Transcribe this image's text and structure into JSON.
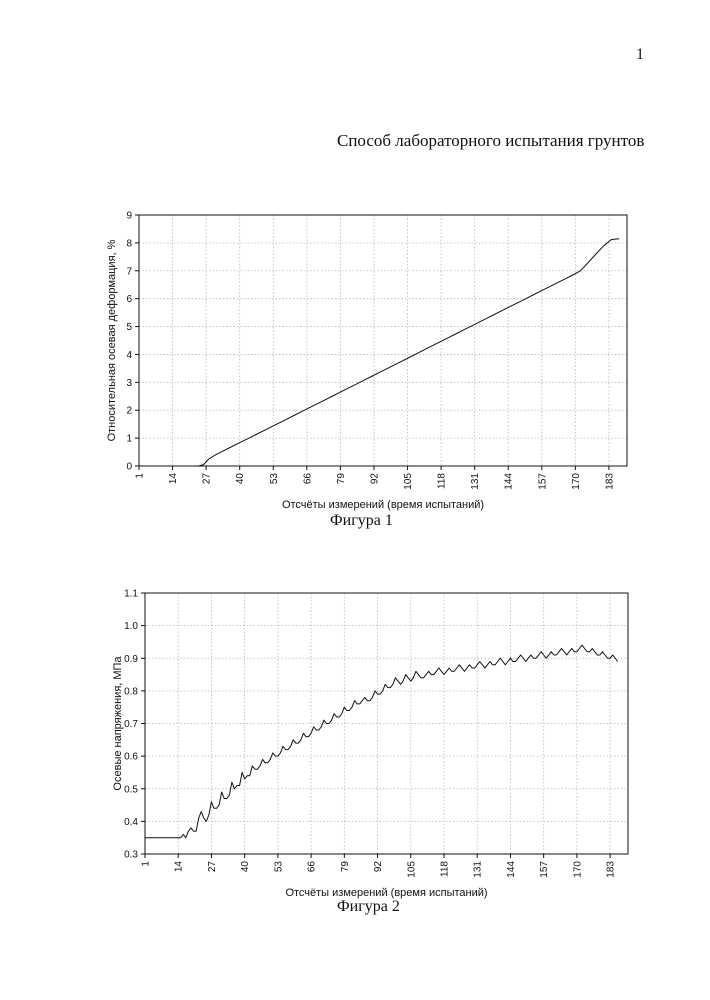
{
  "page_number": "1",
  "document_title": "Способ лабораторного испытания грунтов",
  "captions": [
    "Фигура 1",
    "Фигура 2"
  ],
  "chart_data": [
    {
      "type": "line",
      "caption": "Фигура 1",
      "xlabel": "Отсчёты измерений (время испытаний)",
      "ylabel": "Относительная осевая деформация, %",
      "x_tick_labels": [
        "1",
        "14",
        "27",
        "40",
        "53",
        "66",
        "79",
        "92",
        "105",
        "118",
        "131",
        "144",
        "157",
        "170",
        "183"
      ],
      "y_tick_labels": [
        "0",
        "1",
        "2",
        "3",
        "4",
        "5",
        "6",
        "7",
        "8",
        "9"
      ],
      "xlim": [
        1,
        190
      ],
      "ylim": [
        0,
        9
      ],
      "grid": true,
      "series": [
        {
          "x": [
            1,
            24,
            26,
            28,
            31,
            34,
            37,
            40,
            43,
            46,
            49,
            52,
            55,
            58,
            61,
            64,
            67,
            70,
            73,
            76,
            79,
            82,
            85,
            88,
            91,
            94,
            97,
            100,
            103,
            106,
            109,
            112,
            115,
            118,
            121,
            124,
            127,
            130,
            133,
            136,
            139,
            142,
            145,
            148,
            151,
            154,
            157,
            160,
            163,
            166,
            169,
            172,
            175,
            178,
            181,
            184,
            187
          ],
          "y": [
            0.0,
            0.0,
            0.05,
            0.25,
            0.42,
            0.56,
            0.7,
            0.84,
            0.97,
            1.11,
            1.25,
            1.39,
            1.53,
            1.67,
            1.81,
            1.95,
            2.09,
            2.23,
            2.37,
            2.51,
            2.65,
            2.79,
            2.93,
            3.07,
            3.21,
            3.35,
            3.49,
            3.63,
            3.77,
            3.91,
            4.05,
            4.19,
            4.33,
            4.47,
            4.61,
            4.75,
            4.89,
            5.03,
            5.17,
            5.31,
            5.45,
            5.59,
            5.73,
            5.87,
            6.01,
            6.15,
            6.29,
            6.43,
            6.57,
            6.71,
            6.85,
            7.0,
            7.3,
            7.6,
            7.9,
            8.12,
            8.15
          ]
        }
      ]
    },
    {
      "type": "line",
      "caption": "Фигура 2",
      "xlabel": "Отсчёты измерений (время испытаний)",
      "ylabel": "Осевые напряжения, МПа",
      "x_tick_labels": [
        "1",
        "14",
        "27",
        "40",
        "53",
        "66",
        "79",
        "92",
        "105",
        "118",
        "131",
        "144",
        "157",
        "170",
        "183"
      ],
      "y_tick_labels": [
        "0.3",
        "0.4",
        "0.5",
        "0.6",
        "0.7",
        "0.8",
        "0.9",
        "1.0",
        "1.1"
      ],
      "xlim": [
        1,
        190
      ],
      "ylim": [
        0.3,
        1.1
      ],
      "grid": true,
      "series": [
        {
          "x": [
            1,
            5,
            8,
            12,
            15,
            16,
            17,
            18,
            19,
            20,
            21,
            22,
            23,
            24,
            25,
            26,
            27,
            28,
            29,
            30,
            31,
            32,
            33,
            34,
            35,
            36,
            37,
            38,
            39,
            40,
            41,
            42,
            43,
            44,
            45,
            46,
            47,
            48,
            49,
            50,
            51,
            52,
            53,
            54,
            55,
            56,
            57,
            58,
            59,
            60,
            61,
            62,
            63,
            64,
            65,
            66,
            67,
            68,
            69,
            70,
            71,
            72,
            73,
            74,
            75,
            76,
            77,
            78,
            79,
            80,
            81,
            82,
            83,
            84,
            85,
            86,
            87,
            88,
            89,
            90,
            91,
            92,
            93,
            94,
            95,
            96,
            97,
            98,
            99,
            100,
            101,
            102,
            103,
            104,
            105,
            106,
            107,
            108,
            109,
            110,
            111,
            112,
            113,
            114,
            115,
            116,
            117,
            118,
            119,
            120,
            121,
            122,
            123,
            124,
            125,
            126,
            127,
            128,
            129,
            130,
            131,
            132,
            133,
            134,
            135,
            136,
            137,
            138,
            139,
            140,
            141,
            142,
            143,
            144,
            145,
            146,
            147,
            148,
            149,
            150,
            151,
            152,
            153,
            154,
            155,
            156,
            157,
            158,
            159,
            160,
            161,
            162,
            163,
            164,
            165,
            166,
            167,
            168,
            169,
            170,
            171,
            172,
            173,
            174,
            175,
            176,
            177,
            178,
            179,
            180,
            181,
            182,
            183,
            184,
            185,
            186
          ],
          "y": [
            0.35,
            0.35,
            0.35,
            0.35,
            0.35,
            0.36,
            0.35,
            0.37,
            0.38,
            0.37,
            0.37,
            0.41,
            0.43,
            0.41,
            0.4,
            0.42,
            0.46,
            0.44,
            0.44,
            0.45,
            0.49,
            0.47,
            0.47,
            0.48,
            0.52,
            0.5,
            0.51,
            0.51,
            0.55,
            0.53,
            0.54,
            0.54,
            0.57,
            0.56,
            0.56,
            0.57,
            0.59,
            0.58,
            0.58,
            0.59,
            0.61,
            0.6,
            0.6,
            0.61,
            0.63,
            0.62,
            0.62,
            0.63,
            0.65,
            0.64,
            0.64,
            0.65,
            0.67,
            0.66,
            0.66,
            0.67,
            0.69,
            0.68,
            0.68,
            0.69,
            0.71,
            0.7,
            0.7,
            0.71,
            0.73,
            0.72,
            0.72,
            0.73,
            0.75,
            0.74,
            0.74,
            0.75,
            0.77,
            0.76,
            0.76,
            0.77,
            0.78,
            0.77,
            0.77,
            0.78,
            0.8,
            0.79,
            0.79,
            0.8,
            0.82,
            0.81,
            0.81,
            0.82,
            0.84,
            0.83,
            0.82,
            0.83,
            0.85,
            0.84,
            0.83,
            0.84,
            0.86,
            0.85,
            0.84,
            0.84,
            0.85,
            0.86,
            0.85,
            0.85,
            0.86,
            0.87,
            0.86,
            0.85,
            0.86,
            0.87,
            0.86,
            0.86,
            0.87,
            0.88,
            0.87,
            0.86,
            0.87,
            0.88,
            0.87,
            0.87,
            0.88,
            0.89,
            0.88,
            0.87,
            0.88,
            0.89,
            0.88,
            0.88,
            0.89,
            0.9,
            0.89,
            0.88,
            0.89,
            0.9,
            0.89,
            0.89,
            0.9,
            0.91,
            0.9,
            0.89,
            0.9,
            0.91,
            0.9,
            0.9,
            0.91,
            0.92,
            0.91,
            0.9,
            0.91,
            0.92,
            0.91,
            0.91,
            0.92,
            0.93,
            0.92,
            0.91,
            0.92,
            0.93,
            0.92,
            0.92,
            0.93,
            0.94,
            0.93,
            0.92,
            0.92,
            0.93,
            0.92,
            0.91,
            0.91,
            0.92,
            0.91,
            0.9,
            0.9,
            0.91,
            0.9,
            0.89
          ]
        }
      ]
    }
  ]
}
